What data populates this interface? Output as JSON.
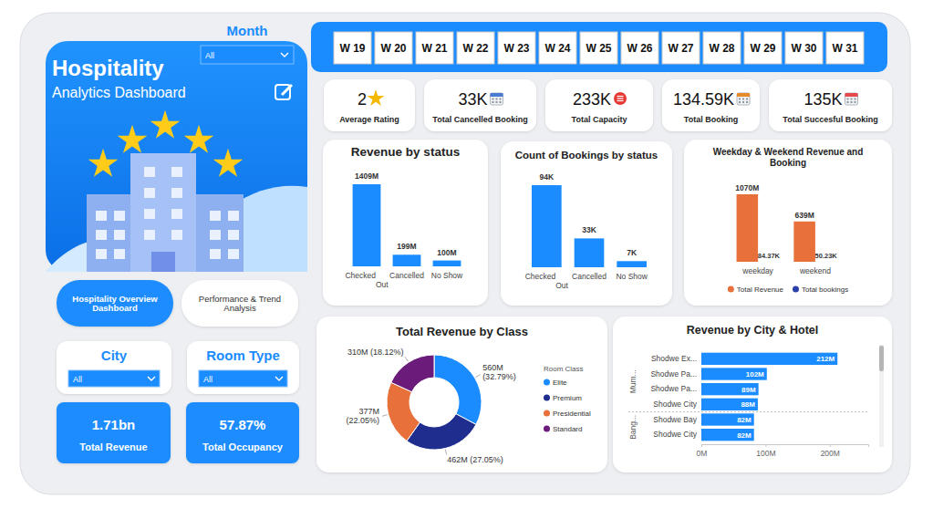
{
  "dashboard": {
    "title": "Hospitality",
    "subtitle": "Analytics Dashboard",
    "month_filter": {
      "label": "Month",
      "value": "All"
    },
    "weeks": [
      "W 19",
      "W 20",
      "W 21",
      "W 22",
      "W 23",
      "W 24",
      "W 25",
      "W 26",
      "W 27",
      "W 28",
      "W 29",
      "W 30",
      "W 31"
    ],
    "kpis": [
      {
        "value": "2",
        "label": "Average Rating"
      },
      {
        "value": "33K",
        "label": "Total Cancelled Booking"
      },
      {
        "value": "233K",
        "label": "Total Capacity"
      },
      {
        "value": "134.59K",
        "label": "Total Booking"
      },
      {
        "value": "135K",
        "label": "Total Succesful Booking"
      }
    ],
    "nav": [
      "Hospitality Overview Dashboard",
      "Performance & Trend Analysis"
    ],
    "filters": [
      {
        "label": "City",
        "value": "All"
      },
      {
        "label": "Room Type",
        "value": "All"
      }
    ],
    "totals": [
      {
        "value": "1.71bn",
        "label": "Total Revenue"
      },
      {
        "value": "57.87%",
        "label": "Total Occupancy"
      }
    ]
  },
  "chart_data": [
    {
      "type": "bar",
      "title": "Revenue by status",
      "categories": [
        "Checked Out",
        "Cancelled",
        "No Show"
      ],
      "values": [
        1409,
        199,
        100
      ],
      "value_labels": [
        "1409M",
        "199M",
        "100M"
      ],
      "color": "#1a8cff",
      "ylim": [
        0,
        1409
      ],
      "data_labels": true,
      "tick_labels": "x"
    },
    {
      "type": "bar",
      "title": "Count of Bookings by status",
      "categories": [
        "Checked Out",
        "Cancelled",
        "No Show"
      ],
      "values": [
        94,
        33,
        7
      ],
      "value_labels": [
        "94K",
        "33K",
        "7K"
      ],
      "color": "#1a8cff",
      "ylim": [
        0,
        94
      ],
      "data_labels": true,
      "tick_labels": "x"
    },
    {
      "type": "bar",
      "title": "Weekday & Weekend Revenue and Booking",
      "categories": [
        "weekday",
        "weekend"
      ],
      "series": [
        {
          "name": "Total Revenue",
          "color": "#e8703a",
          "values": [
            1070000000,
            639000000
          ],
          "value_labels": [
            "1070M",
            "639M"
          ]
        },
        {
          "name": "Total bookings",
          "color": "#2b3fa8",
          "values": [
            84370,
            50230
          ],
          "value_labels": [
            "84.37K",
            "50.23K"
          ]
        }
      ],
      "ylim": [
        0,
        1070000000
      ],
      "data_labels": true,
      "legend": "bottom",
      "tick_labels": "x"
    },
    {
      "type": "donut",
      "title": "Total Revenue by Class",
      "categories": [
        "Elite",
        "Premium",
        "Presidential",
        "Standard"
      ],
      "values": [
        560,
        462,
        377,
        310
      ],
      "value_labels": [
        "560M (32.79%)",
        "462M (27.05%)",
        "377M (22.05%)",
        "310M (18.12%)"
      ],
      "colors": [
        "#1a8cff",
        "#1f2d8f",
        "#e8703a",
        "#6b1c7a"
      ],
      "legend": "right",
      "legend_title": "Room Class",
      "data_labels": true
    },
    {
      "type": "bar",
      "orientation": "horizontal",
      "title": "Revenue by City & Hotel",
      "categories": [
        "Shodwe Ex...",
        "Shodwe Pa...",
        "Shodwe Pa...",
        "Shodwe City",
        "Shodwe Bay",
        "Shodwe City"
      ],
      "groups": [
        {
          "name": "Mum...",
          "count": 4
        },
        {
          "name": "Bang...",
          "count": 2
        }
      ],
      "values": [
        212,
        102,
        89,
        88,
        82,
        82
      ],
      "value_labels": [
        "212M",
        "102M",
        "89M",
        "88M",
        "82M",
        "82M"
      ],
      "color": "#1a8cff",
      "xlim": [
        0,
        260
      ],
      "xticks": [
        {
          "value": 0,
          "label": "0M"
        },
        {
          "value": 100,
          "label": "100M"
        },
        {
          "value": 200,
          "label": "200M"
        }
      ],
      "data_labels": true
    }
  ]
}
